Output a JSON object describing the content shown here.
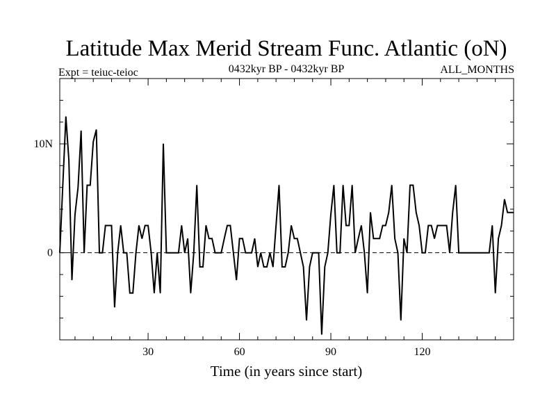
{
  "chart_data": {
    "type": "line",
    "title": "Latitude Max Merid Stream Func. Atlantic (oN)",
    "subtitle_left": "Expt = teiuc-teioc",
    "subtitle_center": "0432kyr BP - 0432kyr BP",
    "subtitle_right": "ALL_MONTHS",
    "xlabel": "Time (in years since start)",
    "ylabel": "",
    "xlim": [
      1,
      150
    ],
    "ylim": [
      -8,
      16
    ],
    "x_ticks": [
      30,
      60,
      90,
      120
    ],
    "x_tick_labels": [
      "30",
      "60",
      "90",
      "120"
    ],
    "y_ticks": [
      0,
      10
    ],
    "y_tick_labels": [
      "0",
      "10N"
    ],
    "minor_x_step": 6,
    "minor_y_step": 2,
    "zero_line": "dashed",
    "grid": false,
    "series": [
      {
        "values": [
          [
            1,
            0
          ],
          [
            3,
            12.5
          ],
          [
            4,
            8.5
          ],
          [
            5,
            -2.5
          ],
          [
            6,
            3.5
          ],
          [
            7,
            6
          ],
          [
            8,
            11.2
          ],
          [
            9,
            0
          ],
          [
            10,
            6.2
          ],
          [
            11,
            6.2
          ],
          [
            12,
            10.2
          ],
          [
            13,
            11.3
          ],
          [
            14,
            0
          ],
          [
            15,
            0
          ],
          [
            16,
            2.5
          ],
          [
            17,
            2.5
          ],
          [
            18,
            2.5
          ],
          [
            19,
            -5
          ],
          [
            20,
            0
          ],
          [
            21,
            2.5
          ],
          [
            22,
            0
          ],
          [
            23,
            0
          ],
          [
            24,
            -3.7
          ],
          [
            25,
            -3.7
          ],
          [
            26,
            0
          ],
          [
            27,
            2.5
          ],
          [
            28,
            1.3
          ],
          [
            29,
            2.5
          ],
          [
            30,
            2.5
          ],
          [
            31,
            0
          ],
          [
            32,
            -3.7
          ],
          [
            33,
            0
          ],
          [
            34,
            -3.7
          ],
          [
            35,
            10
          ],
          [
            36,
            0
          ],
          [
            37,
            0
          ],
          [
            38,
            0
          ],
          [
            39,
            0
          ],
          [
            40,
            0
          ],
          [
            41,
            2.5
          ],
          [
            42,
            0
          ],
          [
            43,
            1.3
          ],
          [
            44,
            -3.7
          ],
          [
            45,
            0
          ],
          [
            46,
            6.2
          ],
          [
            47,
            -1.3
          ],
          [
            48,
            -1.3
          ],
          [
            49,
            2.5
          ],
          [
            50,
            1.3
          ],
          [
            51,
            1.3
          ],
          [
            52,
            0
          ],
          [
            53,
            0
          ],
          [
            54,
            0
          ],
          [
            55,
            1.3
          ],
          [
            56,
            2.5
          ],
          [
            57,
            2.5
          ],
          [
            58,
            0
          ],
          [
            59,
            -2.5
          ],
          [
            60,
            1.3
          ],
          [
            61,
            1.3
          ],
          [
            62,
            0
          ],
          [
            63,
            0
          ],
          [
            64,
            0
          ],
          [
            65,
            1.3
          ],
          [
            66,
            -1.3
          ],
          [
            67,
            0
          ],
          [
            68,
            -1.3
          ],
          [
            69,
            -1.3
          ],
          [
            70,
            0
          ],
          [
            71,
            -1.3
          ],
          [
            72,
            2.5
          ],
          [
            73,
            6.2
          ],
          [
            74,
            -1.3
          ],
          [
            75,
            -1.3
          ],
          [
            76,
            0
          ],
          [
            77,
            2.5
          ],
          [
            78,
            1.3
          ],
          [
            79,
            1.3
          ],
          [
            80,
            0
          ],
          [
            81,
            -1.3
          ],
          [
            82,
            -6.2
          ],
          [
            83,
            -1.3
          ],
          [
            84,
            0
          ],
          [
            85,
            0
          ],
          [
            86,
            0
          ],
          [
            87,
            -7.5
          ],
          [
            88,
            -1.3
          ],
          [
            89,
            0
          ],
          [
            90,
            3.5
          ],
          [
            91,
            6.2
          ],
          [
            92,
            0
          ],
          [
            93,
            0
          ],
          [
            94,
            6.2
          ],
          [
            95,
            2.5
          ],
          [
            96,
            2.5
          ],
          [
            97,
            6.2
          ],
          [
            98,
            0
          ],
          [
            99,
            1.3
          ],
          [
            100,
            2.5
          ],
          [
            101,
            0
          ],
          [
            102,
            -3.7
          ],
          [
            103,
            3.7
          ],
          [
            104,
            1.3
          ],
          [
            105,
            1.3
          ],
          [
            106,
            1.3
          ],
          [
            107,
            2.5
          ],
          [
            108,
            2.5
          ],
          [
            109,
            3.7
          ],
          [
            110,
            6.2
          ],
          [
            111,
            1.3
          ],
          [
            112,
            0
          ],
          [
            113,
            -6.2
          ],
          [
            114,
            1.3
          ],
          [
            115,
            0
          ],
          [
            116,
            6.2
          ],
          [
            117,
            6.2
          ],
          [
            118,
            3.7
          ],
          [
            119,
            2.5
          ],
          [
            120,
            0
          ],
          [
            121,
            0
          ],
          [
            122,
            2.5
          ],
          [
            123,
            2.5
          ],
          [
            124,
            1.3
          ],
          [
            125,
            2.5
          ],
          [
            126,
            2.5
          ],
          [
            127,
            2.5
          ],
          [
            128,
            2.5
          ],
          [
            129,
            0
          ],
          [
            130,
            3.7
          ],
          [
            131,
            6.2
          ],
          [
            132,
            0
          ],
          [
            133,
            0
          ],
          [
            134,
            0
          ],
          [
            135,
            0
          ],
          [
            136,
            0
          ],
          [
            137,
            0
          ],
          [
            138,
            0
          ],
          [
            139,
            0
          ],
          [
            140,
            0
          ],
          [
            141,
            0
          ],
          [
            142,
            0
          ],
          [
            143,
            2.5
          ],
          [
            144,
            -3.7
          ],
          [
            145,
            1.3
          ],
          [
            146,
            2.5
          ],
          [
            147,
            4.9
          ],
          [
            148,
            3.7
          ],
          [
            149,
            3.7
          ],
          [
            150,
            3.7
          ]
        ],
        "color": "#000000"
      }
    ]
  }
}
